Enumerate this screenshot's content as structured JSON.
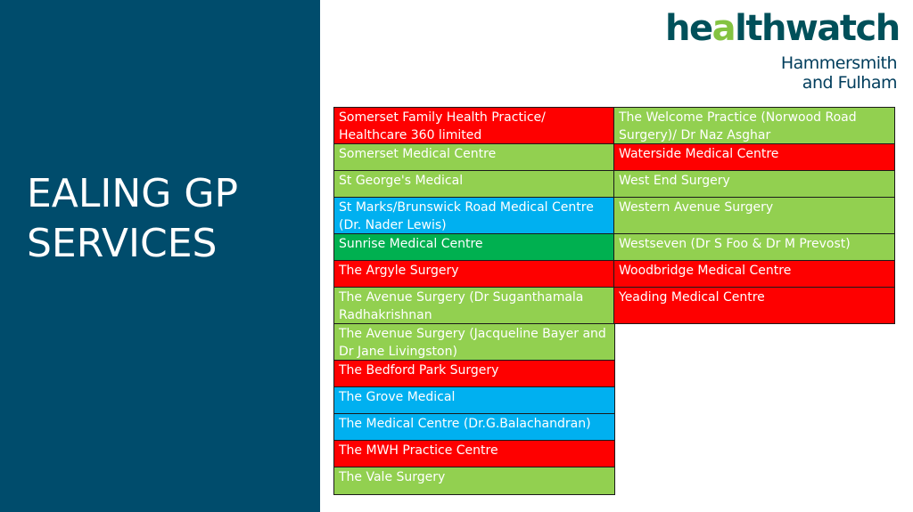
{
  "title": {
    "line1": "EALING GP",
    "line2": "SERVICES"
  },
  "logo": {
    "word_start": "he",
    "word_o": "a",
    "word_end": "lthwatch",
    "line1": "Hammersmith",
    "line2": "and Fulham"
  },
  "colors": {
    "sidebar": "#004c6c",
    "red": "#fe0000",
    "light_green": "#92d050",
    "green": "#00b050",
    "blue": "#00b0f0"
  },
  "left_column": [
    {
      "name": "Somerset Family Health Practice/ Healthcare 360 limited",
      "color": "red"
    },
    {
      "name": "Somerset Medical Centre",
      "color": "light_green"
    },
    {
      "name": "St George's Medical",
      "color": "light_green"
    },
    {
      "name": "St Marks/Brunswick Road Medical Centre (Dr. Nader Lewis)",
      "color": "blue"
    },
    {
      "name": "Sunrise Medical Centre",
      "color": "green"
    },
    {
      "name": "The Argyle Surgery",
      "color": "red"
    },
    {
      "name": "The Avenue Surgery (Dr Suganthamala Radhakrishnan",
      "color": "light_green"
    },
    {
      "name": "The Avenue Surgery (Jacqueline Bayer and Dr Jane Livingston)",
      "color": "light_green"
    },
    {
      "name": "The Bedford Park Surgery",
      "color": "red"
    },
    {
      "name": "The Grove Medical",
      "color": "blue"
    },
    {
      "name": "The Medical Centre (Dr.G.Balachandran)",
      "color": "blue"
    },
    {
      "name": "The MWH Practice Centre",
      "color": "red"
    },
    {
      "name": "The Vale Surgery",
      "color": "light_green"
    }
  ],
  "right_column": [
    {
      "name": "The Welcome Practice (Norwood Road Surgery)/ Dr Naz Asghar",
      "color": "light_green"
    },
    {
      "name": "Waterside Medical Centre",
      "color": "red"
    },
    {
      "name": "West End Surgery",
      "color": "light_green"
    },
    {
      "name": "Western Avenue Surgery",
      "color": "light_green"
    },
    {
      "name": "Westseven (Dr S Foo & Dr M Prevost)",
      "color": "light_green"
    },
    {
      "name": "Woodbridge Medical Centre",
      "color": "red"
    },
    {
      "name": "Yeading Medical Centre",
      "color": "red"
    }
  ]
}
